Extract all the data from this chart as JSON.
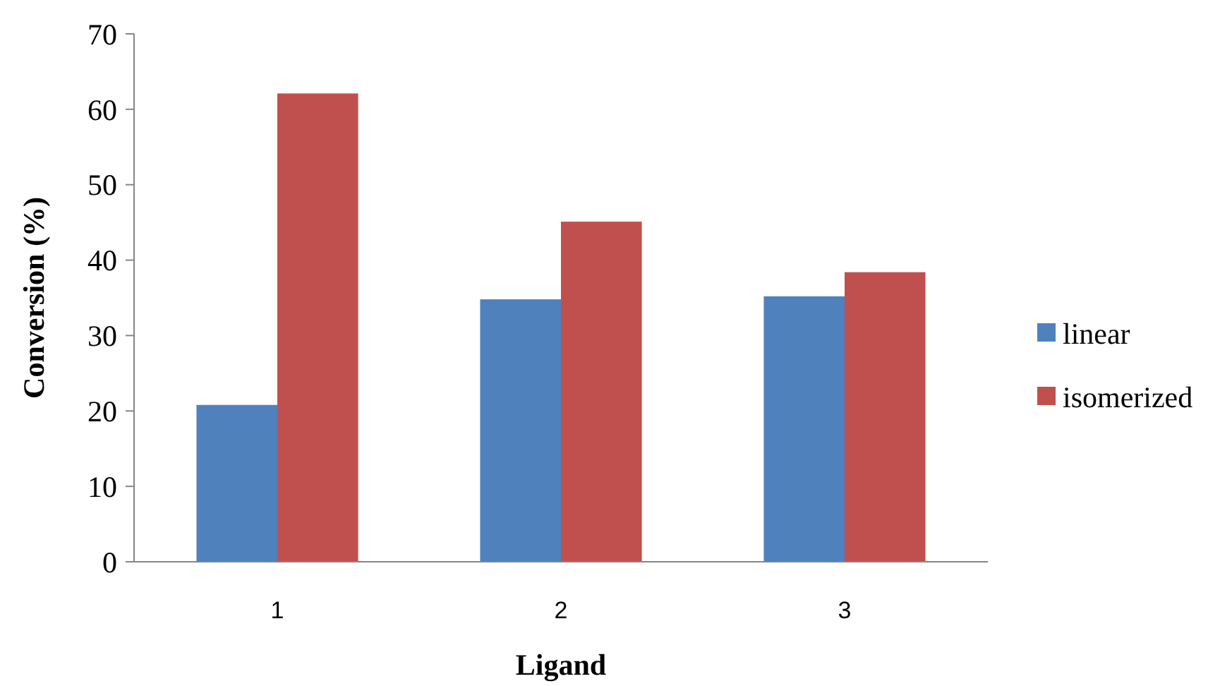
{
  "chart_data": {
    "type": "bar",
    "xlabel": "Ligand",
    "ylabel": "Conversion (%)",
    "categories": [
      "1",
      "2",
      "3"
    ],
    "series": [
      {
        "name": "linear",
        "color": "#4f81bd",
        "values": [
          20.8,
          34.8,
          35.2
        ]
      },
      {
        "name": "isomerized",
        "color": "#c0504d",
        "values": [
          62.1,
          45.1,
          38.4
        ]
      }
    ],
    "ylim": [
      0,
      70
    ],
    "yticks": [
      0,
      10,
      20,
      30,
      40,
      50,
      60,
      70
    ],
    "legend": "right",
    "grid": false
  }
}
